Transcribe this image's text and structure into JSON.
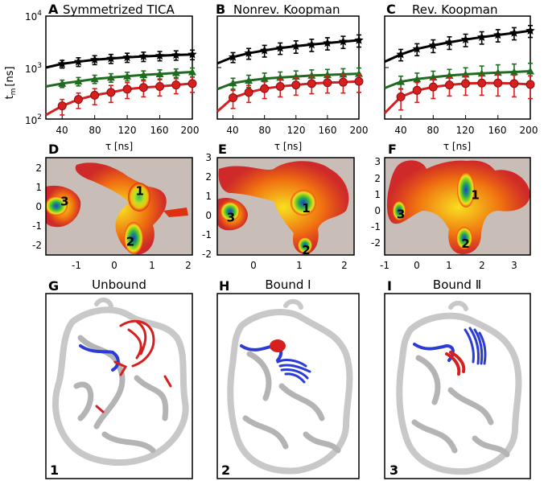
{
  "colors": {
    "black": "#000000",
    "green": "#1f6b1f",
    "red": "#d62020",
    "map_bg": "#c9bdb8",
    "blue": "#2b3bd6",
    "protein": "#c8c8c8"
  },
  "row1": {
    "ylabel": "t",
    "ylabel_sub": "m",
    "ylabel_unit": "[ns]",
    "xlabel": "τ [ns]",
    "ytick_labels": [
      "10",
      "10",
      "10"
    ],
    "ytick_exponents": [
      "4",
      "3",
      "2"
    ],
    "xtick_labels": [
      "40",
      "80",
      "120",
      "160",
      "200"
    ],
    "panels": [
      {
        "letter": "A",
        "title": "Symmetrized TICA"
      },
      {
        "letter": "B",
        "title": "Nonrev. Koopman"
      },
      {
        "letter": "C",
        "title": "Rev. Koopman"
      }
    ]
  },
  "chart_data": [
    {
      "type": "line",
      "panel": "A",
      "title": "Symmetrized TICA",
      "yscale": "log",
      "xlim": [
        20,
        200
      ],
      "ylim": [
        100,
        10000
      ],
      "xlabel": "τ [ns]",
      "ylabel": "t_m [ns]",
      "x": [
        20,
        40,
        60,
        80,
        100,
        120,
        140,
        160,
        180,
        200
      ],
      "series": [
        {
          "marker": "star",
          "color": "black",
          "values": [
            1000,
            1180,
            1300,
            1420,
            1500,
            1580,
            1650,
            1700,
            1750,
            1800
          ],
          "err": [
            120,
            200,
            250,
            280,
            300,
            320,
            340,
            350,
            360,
            380
          ]
        },
        {
          "marker": "triangle",
          "color": "green",
          "values": [
            430,
            490,
            540,
            600,
            640,
            680,
            720,
            750,
            790,
            820
          ],
          "err": [
            50,
            80,
            100,
            110,
            120,
            130,
            140,
            150,
            150,
            160
          ]
        },
        {
          "marker": "circle",
          "color": "red",
          "values": [
            120,
            180,
            240,
            290,
            330,
            380,
            410,
            430,
            460,
            490
          ],
          "err": [
            30,
            60,
            80,
            100,
            120,
            130,
            140,
            150,
            150,
            160
          ]
        }
      ]
    },
    {
      "type": "line",
      "panel": "B",
      "title": "Nonrev. Koopman",
      "yscale": "log",
      "xlim": [
        20,
        200
      ],
      "ylim": [
        100,
        10000
      ],
      "xlabel": "τ [ns]",
      "x": [
        20,
        40,
        60,
        80,
        100,
        120,
        140,
        160,
        180,
        200
      ],
      "series": [
        {
          "marker": "star",
          "color": "black",
          "values": [
            1200,
            1600,
            1900,
            2150,
            2400,
            2600,
            2800,
            3000,
            3200,
            3400
          ],
          "err": [
            200,
            350,
            450,
            550,
            600,
            700,
            750,
            800,
            850,
            900
          ]
        },
        {
          "marker": "triangle",
          "color": "green",
          "values": [
            380,
            500,
            560,
            610,
            640,
            670,
            700,
            720,
            740,
            760
          ],
          "err": [
            60,
            120,
            150,
            170,
            180,
            190,
            200,
            200,
            210,
            220
          ]
        },
        {
          "marker": "circle",
          "color": "red",
          "values": [
            140,
            260,
            330,
            390,
            430,
            460,
            490,
            510,
            520,
            540
          ],
          "err": [
            50,
            100,
            120,
            140,
            160,
            170,
            180,
            190,
            200,
            210
          ]
        }
      ]
    },
    {
      "type": "line",
      "panel": "C",
      "title": "Rev. Koopman",
      "yscale": "log",
      "xlim": [
        20,
        200
      ],
      "ylim": [
        100,
        10000
      ],
      "xlabel": "τ [ns]",
      "x": [
        20,
        40,
        60,
        80,
        100,
        120,
        140,
        160,
        180,
        200
      ],
      "series": [
        {
          "marker": "star",
          "color": "black",
          "values": [
            1300,
            1800,
            2300,
            2700,
            3100,
            3500,
            3900,
            4300,
            4700,
            5200
          ],
          "err": [
            250,
            450,
            600,
            750,
            850,
            950,
            1050,
            1150,
            1250,
            1350
          ]
        },
        {
          "marker": "triangle",
          "color": "green",
          "values": [
            400,
            530,
            600,
            650,
            700,
            740,
            770,
            800,
            820,
            850
          ],
          "err": [
            80,
            150,
            180,
            200,
            220,
            250,
            300,
            330,
            350,
            360
          ]
        },
        {
          "marker": "circle",
          "color": "red",
          "values": [
            130,
            270,
            360,
            420,
            460,
            490,
            500,
            500,
            490,
            470
          ],
          "err": [
            60,
            120,
            150,
            170,
            180,
            200,
            210,
            220,
            220,
            220
          ]
        }
      ]
    },
    {
      "type": "heatmap",
      "panel": "D",
      "xlim": [
        -1.8,
        2.1
      ],
      "ylim": [
        -2.5,
        2.6
      ],
      "xticks": [
        "-1",
        "0",
        "1",
        "2"
      ],
      "yticks": [
        "2",
        "1",
        "0",
        "-1",
        "-2"
      ],
      "states": [
        {
          "label": "1",
          "x": 0.7,
          "y": 0.85
        },
        {
          "label": "2",
          "x": 0.45,
          "y": -1.8
        },
        {
          "label": "3",
          "x": -1.3,
          "y": 0.3
        }
      ]
    },
    {
      "type": "heatmap",
      "panel": "E",
      "xlim": [
        -0.8,
        2.2
      ],
      "ylim": [
        -2.0,
        3.1
      ],
      "xticks": [
        "0",
        "1",
        "2"
      ],
      "yticks": [
        "3",
        "2",
        "1",
        "0",
        "-1",
        "-2"
      ],
      "states": [
        {
          "label": "1",
          "x": 1.15,
          "y": 0.45
        },
        {
          "label": "2",
          "x": 1.15,
          "y": -1.75
        },
        {
          "label": "3",
          "x": -0.5,
          "y": -0.05
        }
      ]
    },
    {
      "type": "heatmap",
      "panel": "F",
      "xlim": [
        -1.0,
        3.5
      ],
      "ylim": [
        -2.5,
        3.5
      ],
      "xticks": [
        "-1",
        "0",
        "1",
        "2",
        "3"
      ],
      "yticks": [
        "3",
        "2",
        "1",
        "0",
        "-1",
        "-2"
      ],
      "states": [
        {
          "label": "1",
          "x": 1.8,
          "y": 1.2
        },
        {
          "label": "2",
          "x": 1.5,
          "y": -1.8
        },
        {
          "label": "3",
          "x": -0.5,
          "y": 0.0
        }
      ]
    }
  ],
  "row3": [
    {
      "letter": "G",
      "title": "Unbound",
      "state": "1"
    },
    {
      "letter": "H",
      "title": "Bound I",
      "state": "2"
    },
    {
      "letter": "I",
      "title": "Bound Ⅱ",
      "state": "3"
    }
  ]
}
